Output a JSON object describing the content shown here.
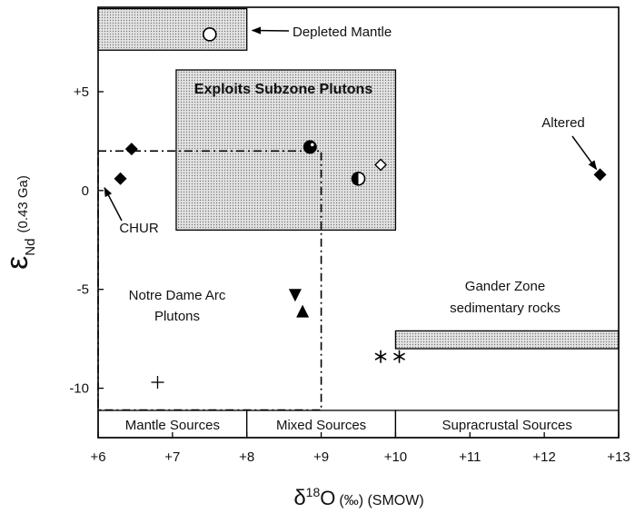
{
  "chart_data": {
    "type": "scatter",
    "y_label": {
      "symbol": "ε",
      "sub": "Nd",
      "text": "(0.43 Ga)"
    },
    "x_label": {
      "symbol": "δ",
      "sup": "18",
      "main": "O",
      "unit": "(‰) (SMOW)"
    },
    "xlim": [
      6,
      13
    ],
    "ylim": [
      -12.5,
      9.27
    ],
    "xticks": [
      {
        "value": 6,
        "label": "+6"
      },
      {
        "value": 7,
        "label": "+7"
      },
      {
        "value": 8,
        "label": "+8"
      },
      {
        "value": 9,
        "label": "+9"
      },
      {
        "value": 10,
        "label": "+10"
      },
      {
        "value": 11,
        "label": "+11"
      },
      {
        "value": 12,
        "label": "+12"
      },
      {
        "value": 13,
        "label": "+13"
      }
    ],
    "yticks": [
      {
        "value": 5,
        "label": "+5"
      },
      0,
      -5,
      -10
    ],
    "regions": [
      {
        "x": [
          6,
          8
        ],
        "y": [
          7.1,
          9.2
        ],
        "style": "stipple"
      },
      {
        "label": "Exploits Subzone Plutons",
        "x": [
          7.05,
          10.0
        ],
        "y": [
          -2.0,
          6.1
        ],
        "style": "stipple"
      },
      {
        "label": [
          "Gander Zone",
          "sedimentary rocks"
        ],
        "x": [
          10.0,
          13.0
        ],
        "y": [
          -8.0,
          -7.1
        ],
        "style": "stipple"
      },
      {
        "label": [
          "Notre Dame Arc",
          "Plutons"
        ],
        "x": [
          6,
          9
        ],
        "y": [
          -11.1,
          2.0
        ],
        "style": "dashed"
      }
    ],
    "source_bands": [
      {
        "label": "Mantle Sources",
        "x": [
          6,
          8
        ]
      },
      {
        "label": "Mixed Sources",
        "x": [
          8,
          10
        ]
      },
      {
        "label": "Supracrustal Sources",
        "x": [
          10,
          13
        ]
      }
    ],
    "series": [
      {
        "marker": "circle-open",
        "color": "#000000",
        "x": [
          7.5
        ],
        "y": [
          7.9
        ]
      },
      {
        "marker": "diamond",
        "color": "#000000",
        "x": [
          6.45,
          6.3,
          12.75
        ],
        "y": [
          2.1,
          0.6,
          0.8
        ]
      },
      {
        "marker": "circle-filled",
        "color": "#000000",
        "x": [
          8.85
        ],
        "y": [
          2.2
        ]
      },
      {
        "marker": "circle-half",
        "color": "#000000",
        "x": [
          9.5
        ],
        "y": [
          0.6
        ]
      },
      {
        "marker": "diamond-open",
        "color": "#000000",
        "x": [
          9.8
        ],
        "y": [
          1.3
        ]
      },
      {
        "marker": "triangle-down",
        "color": "#000000",
        "x": [
          8.65
        ],
        "y": [
          -5.3
        ]
      },
      {
        "marker": "triangle-up",
        "color": "#000000",
        "x": [
          8.75
        ],
        "y": [
          -6.1
        ]
      },
      {
        "marker": "plus",
        "color": "#000000",
        "x": [
          6.8
        ],
        "y": [
          -9.7
        ]
      },
      {
        "marker": "asterisk",
        "color": "#000000",
        "x": [
          9.8,
          10.05
        ],
        "y": [
          -8.4,
          -8.4
        ]
      }
    ],
    "annotations": [
      {
        "text": "Depleted Mantle",
        "x": 8.0,
        "y": 8.1
      },
      {
        "text": "Altered",
        "x": 12.75,
        "y": 0.8
      },
      {
        "text": "CHUR",
        "x": 6.05,
        "y": 0
      }
    ]
  }
}
